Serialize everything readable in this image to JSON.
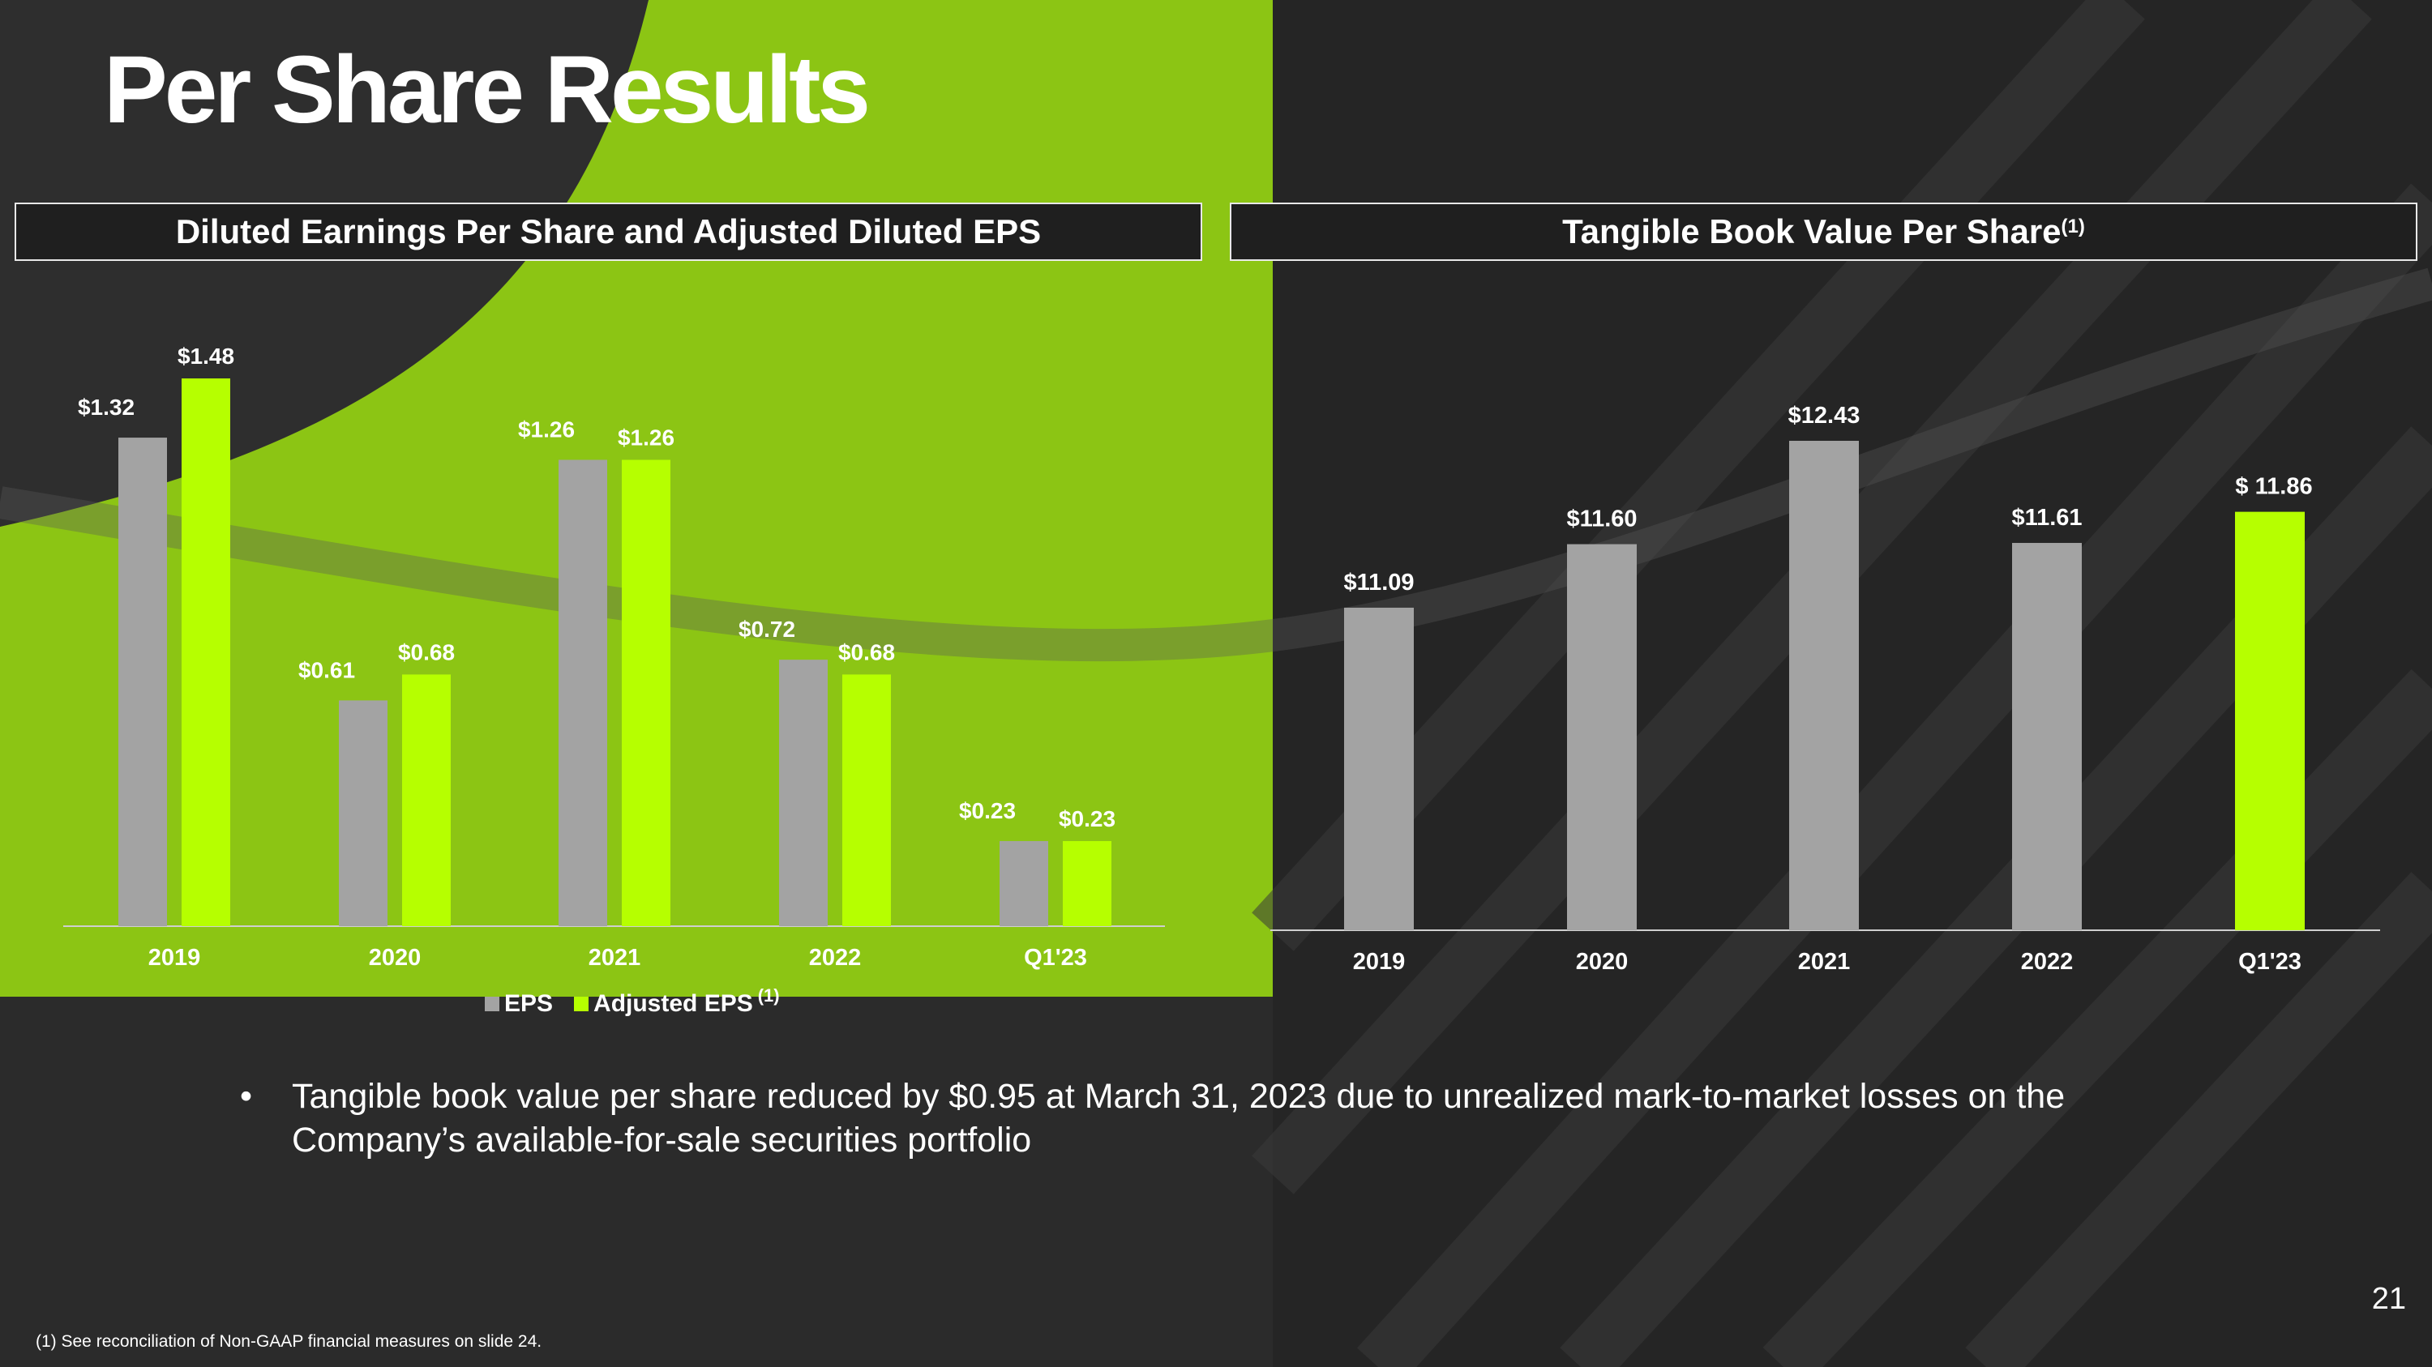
{
  "title": "Per Share Results",
  "colors": {
    "eps": "#a3a3a3",
    "adjusted": "#b6ff00",
    "accent_background": "#8cc514",
    "background": "#252525"
  },
  "left_panel": {
    "header": "Diluted Earnings Per Share and Adjusted Diluted EPS",
    "legend": {
      "eps_label": "EPS",
      "adjusted_label": "Adjusted EPS",
      "adjusted_sup": "(1)"
    }
  },
  "right_panel": {
    "header": "Tangible Book Value Per Share",
    "header_sup": "(1)"
  },
  "chart_data": [
    {
      "type": "bar",
      "title": "Diluted Earnings Per Share and Adjusted Diluted EPS",
      "categories": [
        "2019",
        "2020",
        "2021",
        "2022",
        "Q1'23"
      ],
      "series": [
        {
          "name": "EPS",
          "values": [
            1.32,
            0.61,
            1.26,
            0.72,
            0.23
          ],
          "labels": [
            "$1.32",
            "$0.61",
            "$1.26",
            "$0.72",
            "$0.23"
          ]
        },
        {
          "name": "Adjusted EPS",
          "values": [
            1.48,
            0.68,
            1.26,
            0.68,
            0.23
          ],
          "labels": [
            "$1.48",
            "$0.68",
            "$1.26",
            "$0.68",
            "$0.23"
          ]
        }
      ],
      "ylim": [
        0,
        1.48
      ],
      "legend": "bottom",
      "grid": false
    },
    {
      "type": "bar",
      "title": "Tangible Book Value Per Share",
      "categories": [
        "2019",
        "2020",
        "2021",
        "2022",
        "Q1'23"
      ],
      "values": [
        11.09,
        11.6,
        12.43,
        11.61,
        11.86
      ],
      "labels": [
        "$11.09",
        "$11.60",
        "$12.43",
        "$11.61",
        "$ 11.86"
      ],
      "highlight_last": true,
      "ylim": [
        8.5,
        12.43
      ],
      "grid": false
    }
  ],
  "bullet": "Tangible book value per share reduced by $0.95 at March 31, 2023 due to unrealized mark-to-market losses on the Company’s available-for-sale securities portfolio",
  "page_number": "21",
  "footnote": "(1)  See reconciliation of Non-GAAP financial measures on slide 24."
}
